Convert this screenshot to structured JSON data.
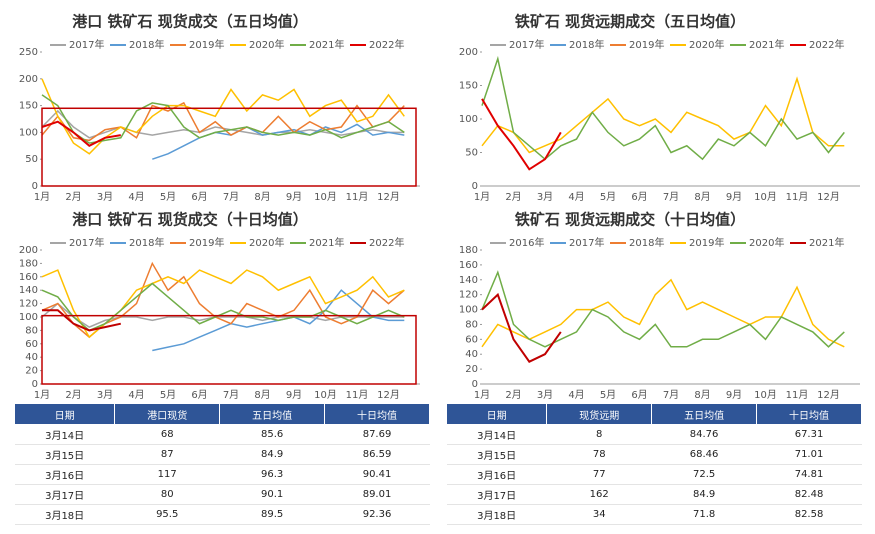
{
  "chart_data": [
    {
      "type": "line",
      "title": "港口 铁矿石 现货成交（五日均值）",
      "categories": [
        "1月",
        null,
        "2月",
        null,
        "3月",
        null,
        "4月",
        null,
        "5月",
        null,
        "6月",
        null,
        "7月",
        null,
        "8月",
        null,
        "9月",
        null,
        "10月",
        null,
        "11月",
        null,
        "12月",
        null
      ],
      "ylim": [
        0,
        250
      ],
      "yticks": [
        0,
        50,
        100,
        150,
        200,
        250
      ],
      "series": [
        {
          "name": "2017年",
          "color": "#a5a5a5",
          "values": [
            110,
            140,
            110,
            90,
            100,
            110,
            100,
            95,
            100,
            105,
            100,
            110,
            105,
            100,
            95,
            100,
            100,
            105,
            100,
            95,
            100,
            105,
            100,
            100
          ]
        },
        {
          "name": "2018年",
          "color": "#5b9bd5",
          "values": [
            null,
            null,
            null,
            null,
            null,
            null,
            null,
            50,
            60,
            75,
            90,
            100,
            95,
            110,
            95,
            100,
            105,
            95,
            110,
            100,
            115,
            95,
            100,
            95
          ]
        },
        {
          "name": "2019年",
          "color": "#ed7d31",
          "values": [
            95,
            130,
            90,
            85,
            105,
            110,
            90,
            150,
            140,
            155,
            100,
            120,
            95,
            110,
            100,
            130,
            100,
            120,
            105,
            110,
            150,
            110,
            120,
            150
          ]
        },
        {
          "name": "2020年",
          "color": "#ffc000",
          "values": [
            200,
            130,
            80,
            60,
            90,
            110,
            100,
            130,
            150,
            150,
            140,
            130,
            180,
            140,
            170,
            160,
            180,
            130,
            150,
            160,
            120,
            130,
            170,
            130
          ]
        },
        {
          "name": "2021年",
          "color": "#70ad47",
          "values": [
            170,
            150,
            100,
            80,
            85,
            90,
            140,
            155,
            150,
            110,
            90,
            100,
            105,
            110,
            100,
            95,
            100,
            95,
            105,
            90,
            100,
            110,
            120,
            100
          ]
        },
        {
          "name": "2022年",
          "color": "#e00000",
          "values": [
            110,
            120,
            100,
            75,
            90,
            95,
            null,
            null,
            null,
            null,
            null,
            null,
            null,
            null,
            null,
            null,
            null,
            null,
            null,
            null,
            null,
            null,
            null,
            null
          ]
        }
      ]
    },
    {
      "type": "line",
      "title": "铁矿石 现货远期成交（五日均值）",
      "categories": [
        "1月",
        null,
        "2月",
        null,
        "3月",
        null,
        "4月",
        null,
        "5月",
        null,
        "6月",
        null,
        "7月",
        null,
        "8月",
        null,
        "9月",
        null,
        "10月",
        null,
        "11月",
        null,
        "12月",
        null
      ],
      "ylim": [
        0,
        200
      ],
      "yticks": [
        0,
        50,
        100,
        150,
        200
      ],
      "series": [
        {
          "name": "2017年",
          "color": "#a5a5a5",
          "values": [
            null,
            null,
            null,
            null,
            null,
            null,
            null,
            null,
            null,
            null,
            null,
            null,
            null,
            null,
            null,
            null,
            null,
            null,
            null,
            null,
            null,
            null,
            null,
            null
          ]
        },
        {
          "name": "2018年",
          "color": "#5b9bd5",
          "values": [
            null,
            null,
            null,
            null,
            null,
            null,
            null,
            null,
            null,
            null,
            null,
            null,
            null,
            null,
            null,
            null,
            null,
            null,
            null,
            null,
            null,
            null,
            null,
            null
          ]
        },
        {
          "name": "2019年",
          "color": "#ed7d31",
          "values": [
            null,
            null,
            null,
            null,
            null,
            null,
            null,
            null,
            null,
            null,
            null,
            null,
            null,
            null,
            null,
            null,
            null,
            null,
            null,
            null,
            null,
            null,
            null,
            null
          ]
        },
        {
          "name": "2020年",
          "color": "#ffc000",
          "values": [
            60,
            90,
            80,
            50,
            60,
            70,
            90,
            110,
            130,
            100,
            90,
            100,
            80,
            110,
            100,
            90,
            70,
            80,
            120,
            90,
            160,
            80,
            60,
            60
          ]
        },
        {
          "name": "2021年",
          "color": "#70ad47",
          "values": [
            120,
            190,
            80,
            60,
            40,
            60,
            70,
            110,
            80,
            60,
            70,
            90,
            50,
            60,
            40,
            70,
            60,
            80,
            60,
            100,
            70,
            80,
            50,
            80
          ]
        },
        {
          "name": "2022年",
          "color": "#e00000",
          "values": [
            130,
            90,
            60,
            25,
            40,
            80,
            null,
            null,
            null,
            null,
            null,
            null,
            null,
            null,
            null,
            null,
            null,
            null,
            null,
            null,
            null,
            null,
            null,
            null
          ]
        }
      ]
    },
    {
      "type": "line",
      "title": "港口 铁矿石 现货成交（十日均值）",
      "categories": [
        "1月",
        null,
        "2月",
        null,
        "3月",
        null,
        "4月",
        null,
        "5月",
        null,
        "6月",
        null,
        "7月",
        null,
        "8月",
        null,
        "9月",
        null,
        "10月",
        null,
        "11月",
        null,
        "12月",
        null
      ],
      "ylim": [
        0,
        200
      ],
      "yticks": [
        0,
        20,
        40,
        60,
        80,
        100,
        120,
        140,
        160,
        180,
        200
      ],
      "series": [
        {
          "name": "2017年",
          "color": "#a5a5a5",
          "values": [
            100,
            120,
            100,
            85,
            95,
            100,
            100,
            95,
            100,
            100,
            95,
            100,
            100,
            100,
            95,
            100,
            100,
            100,
            95,
            100,
            100,
            100,
            100,
            100
          ]
        },
        {
          "name": "2018年",
          "color": "#5b9bd5",
          "values": [
            null,
            null,
            null,
            null,
            null,
            null,
            null,
            50,
            55,
            60,
            70,
            80,
            90,
            85,
            90,
            95,
            100,
            90,
            110,
            140,
            120,
            100,
            95,
            95
          ]
        },
        {
          "name": "2019年",
          "color": "#ed7d31",
          "values": [
            110,
            120,
            90,
            70,
            90,
            100,
            120,
            180,
            140,
            160,
            120,
            100,
            90,
            120,
            110,
            100,
            110,
            140,
            100,
            90,
            100,
            140,
            120,
            140
          ]
        },
        {
          "name": "2020年",
          "color": "#ffc000",
          "values": [
            160,
            170,
            110,
            70,
            90,
            110,
            140,
            150,
            160,
            150,
            170,
            160,
            150,
            170,
            160,
            140,
            150,
            160,
            120,
            130,
            140,
            160,
            130,
            140
          ]
        },
        {
          "name": "2021年",
          "color": "#70ad47",
          "values": [
            140,
            130,
            100,
            80,
            90,
            110,
            130,
            150,
            130,
            110,
            90,
            100,
            110,
            100,
            100,
            95,
            100,
            100,
            110,
            100,
            90,
            100,
            110,
            100
          ]
        },
        {
          "name": "2022年",
          "color": "#c00000",
          "values": [
            110,
            110,
            90,
            80,
            85,
            90,
            null,
            null,
            null,
            null,
            null,
            null,
            null,
            null,
            null,
            null,
            null,
            null,
            null,
            null,
            null,
            null,
            null,
            null
          ]
        }
      ]
    },
    {
      "type": "line",
      "title": "铁矿石 现货远期成交（十日均值）",
      "categories": [
        "1月",
        null,
        "2月",
        null,
        "3月",
        null,
        "4月",
        null,
        "5月",
        null,
        "6月",
        null,
        "7月",
        null,
        "8月",
        null,
        "9月",
        null,
        "10月",
        null,
        "11月",
        null,
        "12月",
        null
      ],
      "ylim": [
        0,
        180
      ],
      "yticks": [
        0,
        20,
        40,
        60,
        80,
        100,
        120,
        140,
        160,
        180
      ],
      "series": [
        {
          "name": "2016年",
          "color": "#a5a5a5",
          "values": [
            null,
            null,
            null,
            null,
            null,
            null,
            null,
            null,
            null,
            null,
            null,
            null,
            null,
            null,
            null,
            null,
            null,
            null,
            null,
            null,
            null,
            null,
            null,
            null
          ]
        },
        {
          "name": "2017年",
          "color": "#5b9bd5",
          "values": [
            null,
            null,
            null,
            null,
            null,
            null,
            null,
            null,
            null,
            null,
            null,
            null,
            null,
            null,
            null,
            null,
            null,
            null,
            null,
            null,
            null,
            null,
            null,
            null
          ]
        },
        {
          "name": "2018年",
          "color": "#ed7d31",
          "values": [
            null,
            null,
            null,
            null,
            null,
            null,
            null,
            null,
            null,
            null,
            null,
            null,
            null,
            null,
            null,
            null,
            null,
            null,
            null,
            null,
            null,
            null,
            null,
            null
          ]
        },
        {
          "name": "2019年",
          "color": "#ffc000",
          "values": [
            50,
            80,
            70,
            60,
            70,
            80,
            100,
            100,
            110,
            90,
            80,
            120,
            140,
            100,
            110,
            100,
            90,
            80,
            90,
            90,
            130,
            80,
            60,
            50
          ]
        },
        {
          "name": "2020年",
          "color": "#70ad47",
          "values": [
            100,
            150,
            80,
            60,
            50,
            60,
            70,
            100,
            90,
            70,
            60,
            80,
            50,
            50,
            60,
            60,
            70,
            80,
            60,
            90,
            80,
            70,
            50,
            70
          ]
        },
        {
          "name": "2021年",
          "color": "#c00000",
          "values": [
            100,
            120,
            60,
            30,
            40,
            70,
            null,
            null,
            null,
            null,
            null,
            null,
            null,
            null,
            null,
            null,
            null,
            null,
            null,
            null,
            null,
            null,
            null,
            null
          ]
        }
      ]
    }
  ],
  "tables": [
    {
      "header": [
        "日期",
        "港口现货",
        "五日均值",
        "十日均值"
      ],
      "rows": [
        [
          "3月14日",
          68,
          85.6,
          87.69
        ],
        [
          "3月15日",
          87,
          84.9,
          86.59
        ],
        [
          "3月16日",
          117,
          96.3,
          90.41
        ],
        [
          "3月17日",
          80,
          90.1,
          89.01
        ],
        [
          "3月18日",
          95.5,
          89.5,
          92.36
        ]
      ]
    },
    {
      "header": [
        "日期",
        "现货远期",
        "五日均值",
        "十日均值"
      ],
      "rows": [
        [
          "3月14日",
          8,
          84.76,
          67.31
        ],
        [
          "3月15日",
          78,
          68.46,
          71.01
        ],
        [
          "3月16日",
          77,
          72.5,
          74.81
        ],
        [
          "3月17日",
          162,
          84.9,
          82.48
        ],
        [
          "3月18日",
          34,
          71.8,
          82.58
        ]
      ]
    }
  ]
}
